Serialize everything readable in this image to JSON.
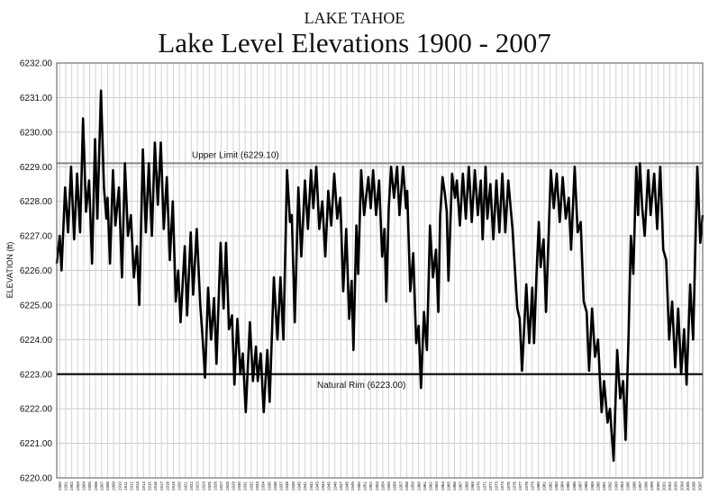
{
  "chart_data": {
    "type": "line",
    "supertitle": "LAKE TAHOE",
    "title": "Lake Level Elevations 1900 - 2007",
    "ylabel": "ELEVATION (ft)",
    "xlabel": "",
    "xlim": [
      1900,
      2008
    ],
    "ylim": [
      6220,
      6232
    ],
    "grid": true,
    "y_ticks": [
      "6220.00",
      "6221.00",
      "6222.00",
      "6223.00",
      "6224.00",
      "6225.00",
      "6226.00",
      "6227.00",
      "6228.00",
      "6229.00",
      "6230.00",
      "6231.00",
      "6232.00"
    ],
    "x_ticks": [
      "1900",
      "1901",
      "1902",
      "1903",
      "1904",
      "1905",
      "1906",
      "1907",
      "1908",
      "1909",
      "1910",
      "1911",
      "1912",
      "1913",
      "1914",
      "1915",
      "1916",
      "1917",
      "1918",
      "1919",
      "1920",
      "1921",
      "1922",
      "1923",
      "1924",
      "1925",
      "1926",
      "1927",
      "1928",
      "1929",
      "1930",
      "1931",
      "1932",
      "1933",
      "1934",
      "1935",
      "1936",
      "1937",
      "1938",
      "1939",
      "1940",
      "1941",
      "1942",
      "1943",
      "1944",
      "1945",
      "1946",
      "1947",
      "1948",
      "1949",
      "1950",
      "1951",
      "1952",
      "1953",
      "1954",
      "1955",
      "1956",
      "1957",
      "1958",
      "1959",
      "1960",
      "1961",
      "1962",
      "1963",
      "1964",
      "1965",
      "1966",
      "1967",
      "1968",
      "1969",
      "1970",
      "1971",
      "1972",
      "1973",
      "1974",
      "1975",
      "1976",
      "1977",
      "1978",
      "1979",
      "1980",
      "1981",
      "1982",
      "1983",
      "1984",
      "1985",
      "1986",
      "1987",
      "1988",
      "1989",
      "1990",
      "1991",
      "1992",
      "1993",
      "1994",
      "1995",
      "1996",
      "1997",
      "1998",
      "1999",
      "2000",
      "2001",
      "2002",
      "2003",
      "2004",
      "2005",
      "2006",
      "2007"
    ],
    "reference_lines": [
      {
        "label": "Upper Limit  (6229.10)",
        "value": 6229.1,
        "color": "#888888"
      },
      {
        "label": "Natural Rim (6223.00)",
        "value": 6223.0,
        "color": "#111111"
      }
    ],
    "series": [
      {
        "color": "#000000",
        "points": [
          [
            1900.0,
            6226.2
          ],
          [
            1900.5,
            6227.0
          ],
          [
            1900.8,
            6226.0
          ],
          [
            1901.4,
            6228.4
          ],
          [
            1901.9,
            6227.1
          ],
          [
            1902.4,
            6229.0
          ],
          [
            1902.9,
            6226.9
          ],
          [
            1903.4,
            6228.8
          ],
          [
            1903.9,
            6227.1
          ],
          [
            1904.4,
            6230.4
          ],
          [
            1904.9,
            6227.7
          ],
          [
            1905.4,
            6228.6
          ],
          [
            1905.9,
            6226.2
          ],
          [
            1906.4,
            6229.8
          ],
          [
            1906.8,
            6227.5
          ],
          [
            1907.4,
            6231.2
          ],
          [
            1907.9,
            6228.4
          ],
          [
            1908.3,
            6227.5
          ],
          [
            1908.5,
            6228.1
          ],
          [
            1908.9,
            6226.2
          ],
          [
            1909.4,
            6228.9
          ],
          [
            1909.8,
            6227.3
          ],
          [
            1910.4,
            6228.4
          ],
          [
            1910.9,
            6225.8
          ],
          [
            1911.4,
            6229.1
          ],
          [
            1911.9,
            6227.0
          ],
          [
            1912.4,
            6227.6
          ],
          [
            1912.9,
            6225.8
          ],
          [
            1913.4,
            6226.7
          ],
          [
            1913.8,
            6225.0
          ],
          [
            1914.4,
            6229.5
          ],
          [
            1914.9,
            6227.1
          ],
          [
            1915.4,
            6229.1
          ],
          [
            1915.9,
            6227.0
          ],
          [
            1916.4,
            6229.7
          ],
          [
            1916.9,
            6227.9
          ],
          [
            1917.4,
            6229.7
          ],
          [
            1917.9,
            6227.2
          ],
          [
            1918.4,
            6228.7
          ],
          [
            1918.9,
            6226.3
          ],
          [
            1919.4,
            6228.0
          ],
          [
            1919.9,
            6225.1
          ],
          [
            1920.3,
            6226.0
          ],
          [
            1920.7,
            6224.5
          ],
          [
            1921.4,
            6226.7
          ],
          [
            1921.8,
            6224.7
          ],
          [
            1922.4,
            6227.1
          ],
          [
            1922.8,
            6225.3
          ],
          [
            1923.4,
            6227.2
          ],
          [
            1924.0,
            6225.0
          ],
          [
            1924.4,
            6224.0
          ],
          [
            1924.8,
            6222.9
          ],
          [
            1925.3,
            6225.5
          ],
          [
            1925.8,
            6224.0
          ],
          [
            1926.3,
            6225.2
          ],
          [
            1926.7,
            6223.3
          ],
          [
            1927.4,
            6226.8
          ],
          [
            1927.9,
            6224.9
          ],
          [
            1928.3,
            6226.8
          ],
          [
            1928.8,
            6224.3
          ],
          [
            1929.3,
            6224.7
          ],
          [
            1929.7,
            6222.7
          ],
          [
            1930.2,
            6224.6
          ],
          [
            1930.7,
            6223.0
          ],
          [
            1931.1,
            6223.6
          ],
          [
            1931.6,
            6221.9
          ],
          [
            1932.3,
            6224.5
          ],
          [
            1932.8,
            6222.8
          ],
          [
            1933.3,
            6223.8
          ],
          [
            1933.6,
            6222.8
          ],
          [
            1934.1,
            6223.6
          ],
          [
            1934.6,
            6221.9
          ],
          [
            1935.2,
            6223.7
          ],
          [
            1935.6,
            6222.2
          ],
          [
            1936.3,
            6225.8
          ],
          [
            1936.9,
            6224.0
          ],
          [
            1937.4,
            6225.8
          ],
          [
            1937.9,
            6224.0
          ],
          [
            1938.5,
            6228.9
          ],
          [
            1939.0,
            6227.4
          ],
          [
            1939.3,
            6227.6
          ],
          [
            1939.8,
            6224.5
          ],
          [
            1940.4,
            6228.4
          ],
          [
            1940.9,
            6226.4
          ],
          [
            1941.5,
            6228.6
          ],
          [
            1942.0,
            6227.2
          ],
          [
            1942.5,
            6228.9
          ],
          [
            1942.9,
            6227.8
          ],
          [
            1943.4,
            6229.0
          ],
          [
            1943.9,
            6227.2
          ],
          [
            1944.4,
            6228.0
          ],
          [
            1944.9,
            6226.4
          ],
          [
            1945.4,
            6228.3
          ],
          [
            1945.9,
            6227.3
          ],
          [
            1946.4,
            6228.8
          ],
          [
            1946.9,
            6227.5
          ],
          [
            1947.4,
            6228.1
          ],
          [
            1947.9,
            6225.4
          ],
          [
            1948.4,
            6227.2
          ],
          [
            1948.9,
            6224.6
          ],
          [
            1949.3,
            6225.7
          ],
          [
            1949.6,
            6223.7
          ],
          [
            1950.1,
            6227.3
          ],
          [
            1950.4,
            6225.9
          ],
          [
            1950.9,
            6228.9
          ],
          [
            1951.4,
            6227.6
          ],
          [
            1952.1,
            6228.7
          ],
          [
            1952.5,
            6227.8
          ],
          [
            1952.9,
            6228.9
          ],
          [
            1953.4,
            6227.6
          ],
          [
            1953.9,
            6228.6
          ],
          [
            1954.4,
            6226.4
          ],
          [
            1954.8,
            6227.2
          ],
          [
            1955.1,
            6225.1
          ],
          [
            1955.5,
            6227.8
          ],
          [
            1955.9,
            6229.0
          ],
          [
            1956.4,
            6228.1
          ],
          [
            1956.9,
            6229.0
          ],
          [
            1957.3,
            6227.6
          ],
          [
            1957.9,
            6229.0
          ],
          [
            1958.4,
            6227.8
          ],
          [
            1958.6,
            6228.3
          ],
          [
            1959.1,
            6225.4
          ],
          [
            1959.6,
            6226.5
          ],
          [
            1960.1,
            6223.9
          ],
          [
            1960.5,
            6224.4
          ],
          [
            1960.9,
            6222.6
          ],
          [
            1961.4,
            6224.8
          ],
          [
            1961.9,
            6223.7
          ],
          [
            1962.4,
            6227.3
          ],
          [
            1962.9,
            6225.8
          ],
          [
            1963.4,
            6226.6
          ],
          [
            1963.8,
            6224.8
          ],
          [
            1964.1,
            6227.6
          ],
          [
            1964.5,
            6228.7
          ],
          [
            1964.9,
            6228.2
          ],
          [
            1965.2,
            6227.7
          ],
          [
            1965.5,
            6225.7
          ],
          [
            1966.1,
            6228.8
          ],
          [
            1966.6,
            6228.1
          ],
          [
            1966.9,
            6228.6
          ],
          [
            1967.4,
            6227.3
          ],
          [
            1967.9,
            6228.8
          ],
          [
            1968.4,
            6227.5
          ],
          [
            1968.9,
            6229.0
          ],
          [
            1969.4,
            6227.4
          ],
          [
            1969.9,
            6228.9
          ],
          [
            1970.4,
            6227.6
          ],
          [
            1970.9,
            6228.6
          ],
          [
            1971.2,
            6226.9
          ],
          [
            1971.7,
            6229.0
          ],
          [
            1972.0,
            6227.5
          ],
          [
            1972.5,
            6228.5
          ],
          [
            1973.0,
            6226.9
          ],
          [
            1973.5,
            6228.6
          ],
          [
            1974.0,
            6227.1
          ],
          [
            1974.5,
            6228.8
          ],
          [
            1975.0,
            6227.1
          ],
          [
            1975.5,
            6228.6
          ],
          [
            1976.2,
            6227.2
          ],
          [
            1977.0,
            6224.9
          ],
          [
            1977.4,
            6224.6
          ],
          [
            1977.8,
            6223.1
          ],
          [
            1978.5,
            6225.6
          ],
          [
            1979.0,
            6223.9
          ],
          [
            1979.5,
            6225.5
          ],
          [
            1979.8,
            6223.9
          ],
          [
            1980.2,
            6225.8
          ],
          [
            1980.6,
            6227.4
          ],
          [
            1980.9,
            6226.1
          ],
          [
            1981.4,
            6226.9
          ],
          [
            1981.8,
            6224.8
          ],
          [
            1982.6,
            6228.9
          ],
          [
            1983.1,
            6227.8
          ],
          [
            1983.6,
            6228.8
          ],
          [
            1984.1,
            6227.4
          ],
          [
            1984.6,
            6228.7
          ],
          [
            1985.1,
            6227.5
          ],
          [
            1985.6,
            6228.1
          ],
          [
            1986.0,
            6226.6
          ],
          [
            1986.6,
            6229.0
          ],
          [
            1987.1,
            6227.1
          ],
          [
            1987.6,
            6227.4
          ],
          [
            1988.1,
            6225.1
          ],
          [
            1988.6,
            6224.8
          ],
          [
            1989.0,
            6223.1
          ],
          [
            1989.5,
            6224.9
          ],
          [
            1990.0,
            6223.5
          ],
          [
            1990.5,
            6224.0
          ],
          [
            1991.1,
            6221.9
          ],
          [
            1991.5,
            6222.8
          ],
          [
            1992.1,
            6221.6
          ],
          [
            1992.5,
            6222.0
          ],
          [
            1993.1,
            6220.5
          ],
          [
            1993.7,
            6223.7
          ],
          [
            1994.2,
            6222.3
          ],
          [
            1994.7,
            6222.8
          ],
          [
            1995.1,
            6221.1
          ],
          [
            1995.6,
            6224.1
          ],
          [
            1996.0,
            6227.0
          ],
          [
            1996.4,
            6225.9
          ],
          [
            1996.9,
            6229.0
          ],
          [
            1997.2,
            6227.6
          ],
          [
            1997.5,
            6229.1
          ],
          [
            1997.9,
            6227.8
          ],
          [
            1998.3,
            6227.0
          ],
          [
            1998.9,
            6228.9
          ],
          [
            1999.3,
            6227.6
          ],
          [
            1999.9,
            6228.8
          ],
          [
            2000.4,
            6227.2
          ],
          [
            2000.9,
            6229.0
          ],
          [
            2001.4,
            6226.6
          ],
          [
            2001.9,
            6226.3
          ],
          [
            2002.4,
            6224.0
          ],
          [
            2002.9,
            6225.1
          ],
          [
            2003.4,
            6223.2
          ],
          [
            2003.9,
            6224.9
          ],
          [
            2004.4,
            6223.0
          ],
          [
            2004.9,
            6224.3
          ],
          [
            2005.3,
            6222.7
          ],
          [
            2005.9,
            6225.6
          ],
          [
            2006.4,
            6224.0
          ],
          [
            2007.1,
            6229.0
          ],
          [
            2007.6,
            6226.8
          ],
          [
            2008.0,
            6227.6
          ]
        ]
      }
    ]
  }
}
